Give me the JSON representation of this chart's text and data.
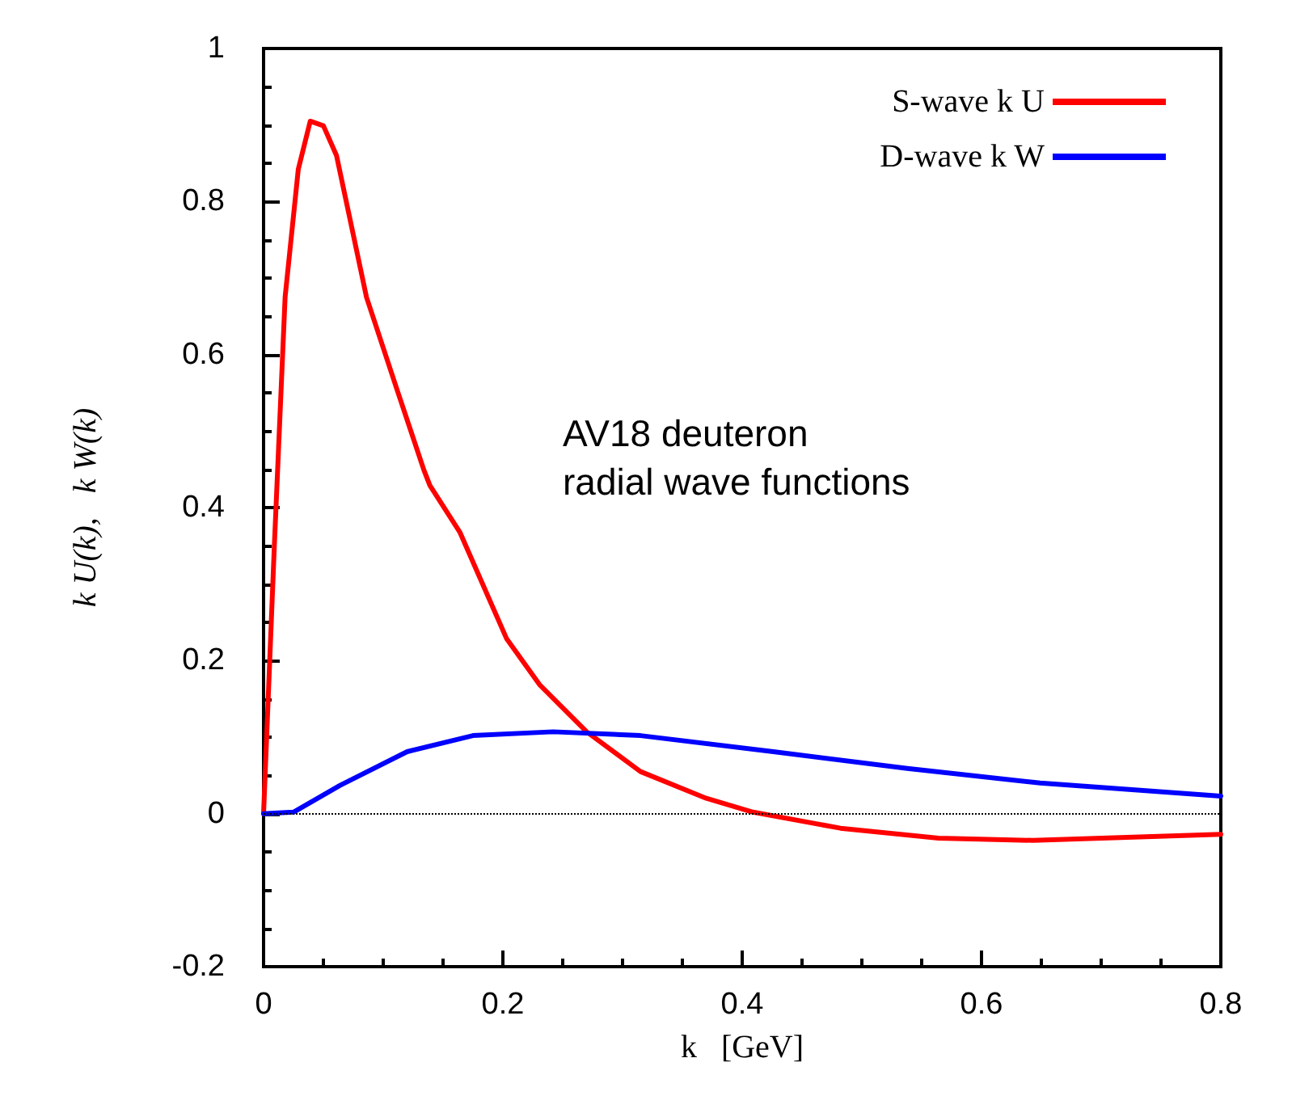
{
  "chart_data": {
    "type": "line",
    "xlabel": "k   [GeV]",
    "ylabel": "k U(k),   k W(k)",
    "annotations": [
      "AV18 deuteron\nradial wave functions"
    ],
    "xlim": [
      0,
      0.8
    ],
    "xticks": [
      0,
      0.2,
      0.4,
      0.6,
      0.8
    ],
    "ylim": [
      -0.2,
      1
    ],
    "yticks": [
      -0.2,
      0,
      0.2,
      0.4,
      0.6,
      0.8,
      1
    ],
    "legend": "top right",
    "grid": false,
    "marker": "none",
    "line_style": "solid",
    "ref_lines": [
      {
        "axis": "y",
        "value": 0,
        "color": "#000000",
        "line_style": "dotted"
      }
    ],
    "series": [
      {
        "name": "S-wave k U",
        "color": "#ff0000",
        "x": [
          0,
          0.009,
          0.018,
          0.029,
          0.039,
          0.05,
          0.061,
          0.086,
          0.112,
          0.134,
          0.139,
          0.164,
          0.203,
          0.231,
          0.27,
          0.315,
          0.37,
          0.409,
          0.482,
          0.564,
          0.643,
          0.8
        ],
        "values": [
          0,
          0.35,
          0.675,
          0.842,
          0.905,
          0.899,
          0.86,
          0.675,
          0.552,
          0.449,
          0.429,
          0.368,
          0.229,
          0.168,
          0.107,
          0.055,
          0.02,
          0.002,
          -0.019,
          -0.032,
          -0.035,
          -0.027
        ]
      },
      {
        "name": "D-wave k W",
        "color": "#0000ff",
        "x": [
          0,
          0.025,
          0.064,
          0.12,
          0.175,
          0.242,
          0.315,
          0.426,
          0.538,
          0.649,
          0.8
        ],
        "values": [
          0,
          0.002,
          0.037,
          0.081,
          0.102,
          0.107,
          0.102,
          0.081,
          0.059,
          0.04,
          0.023
        ]
      }
    ]
  }
}
